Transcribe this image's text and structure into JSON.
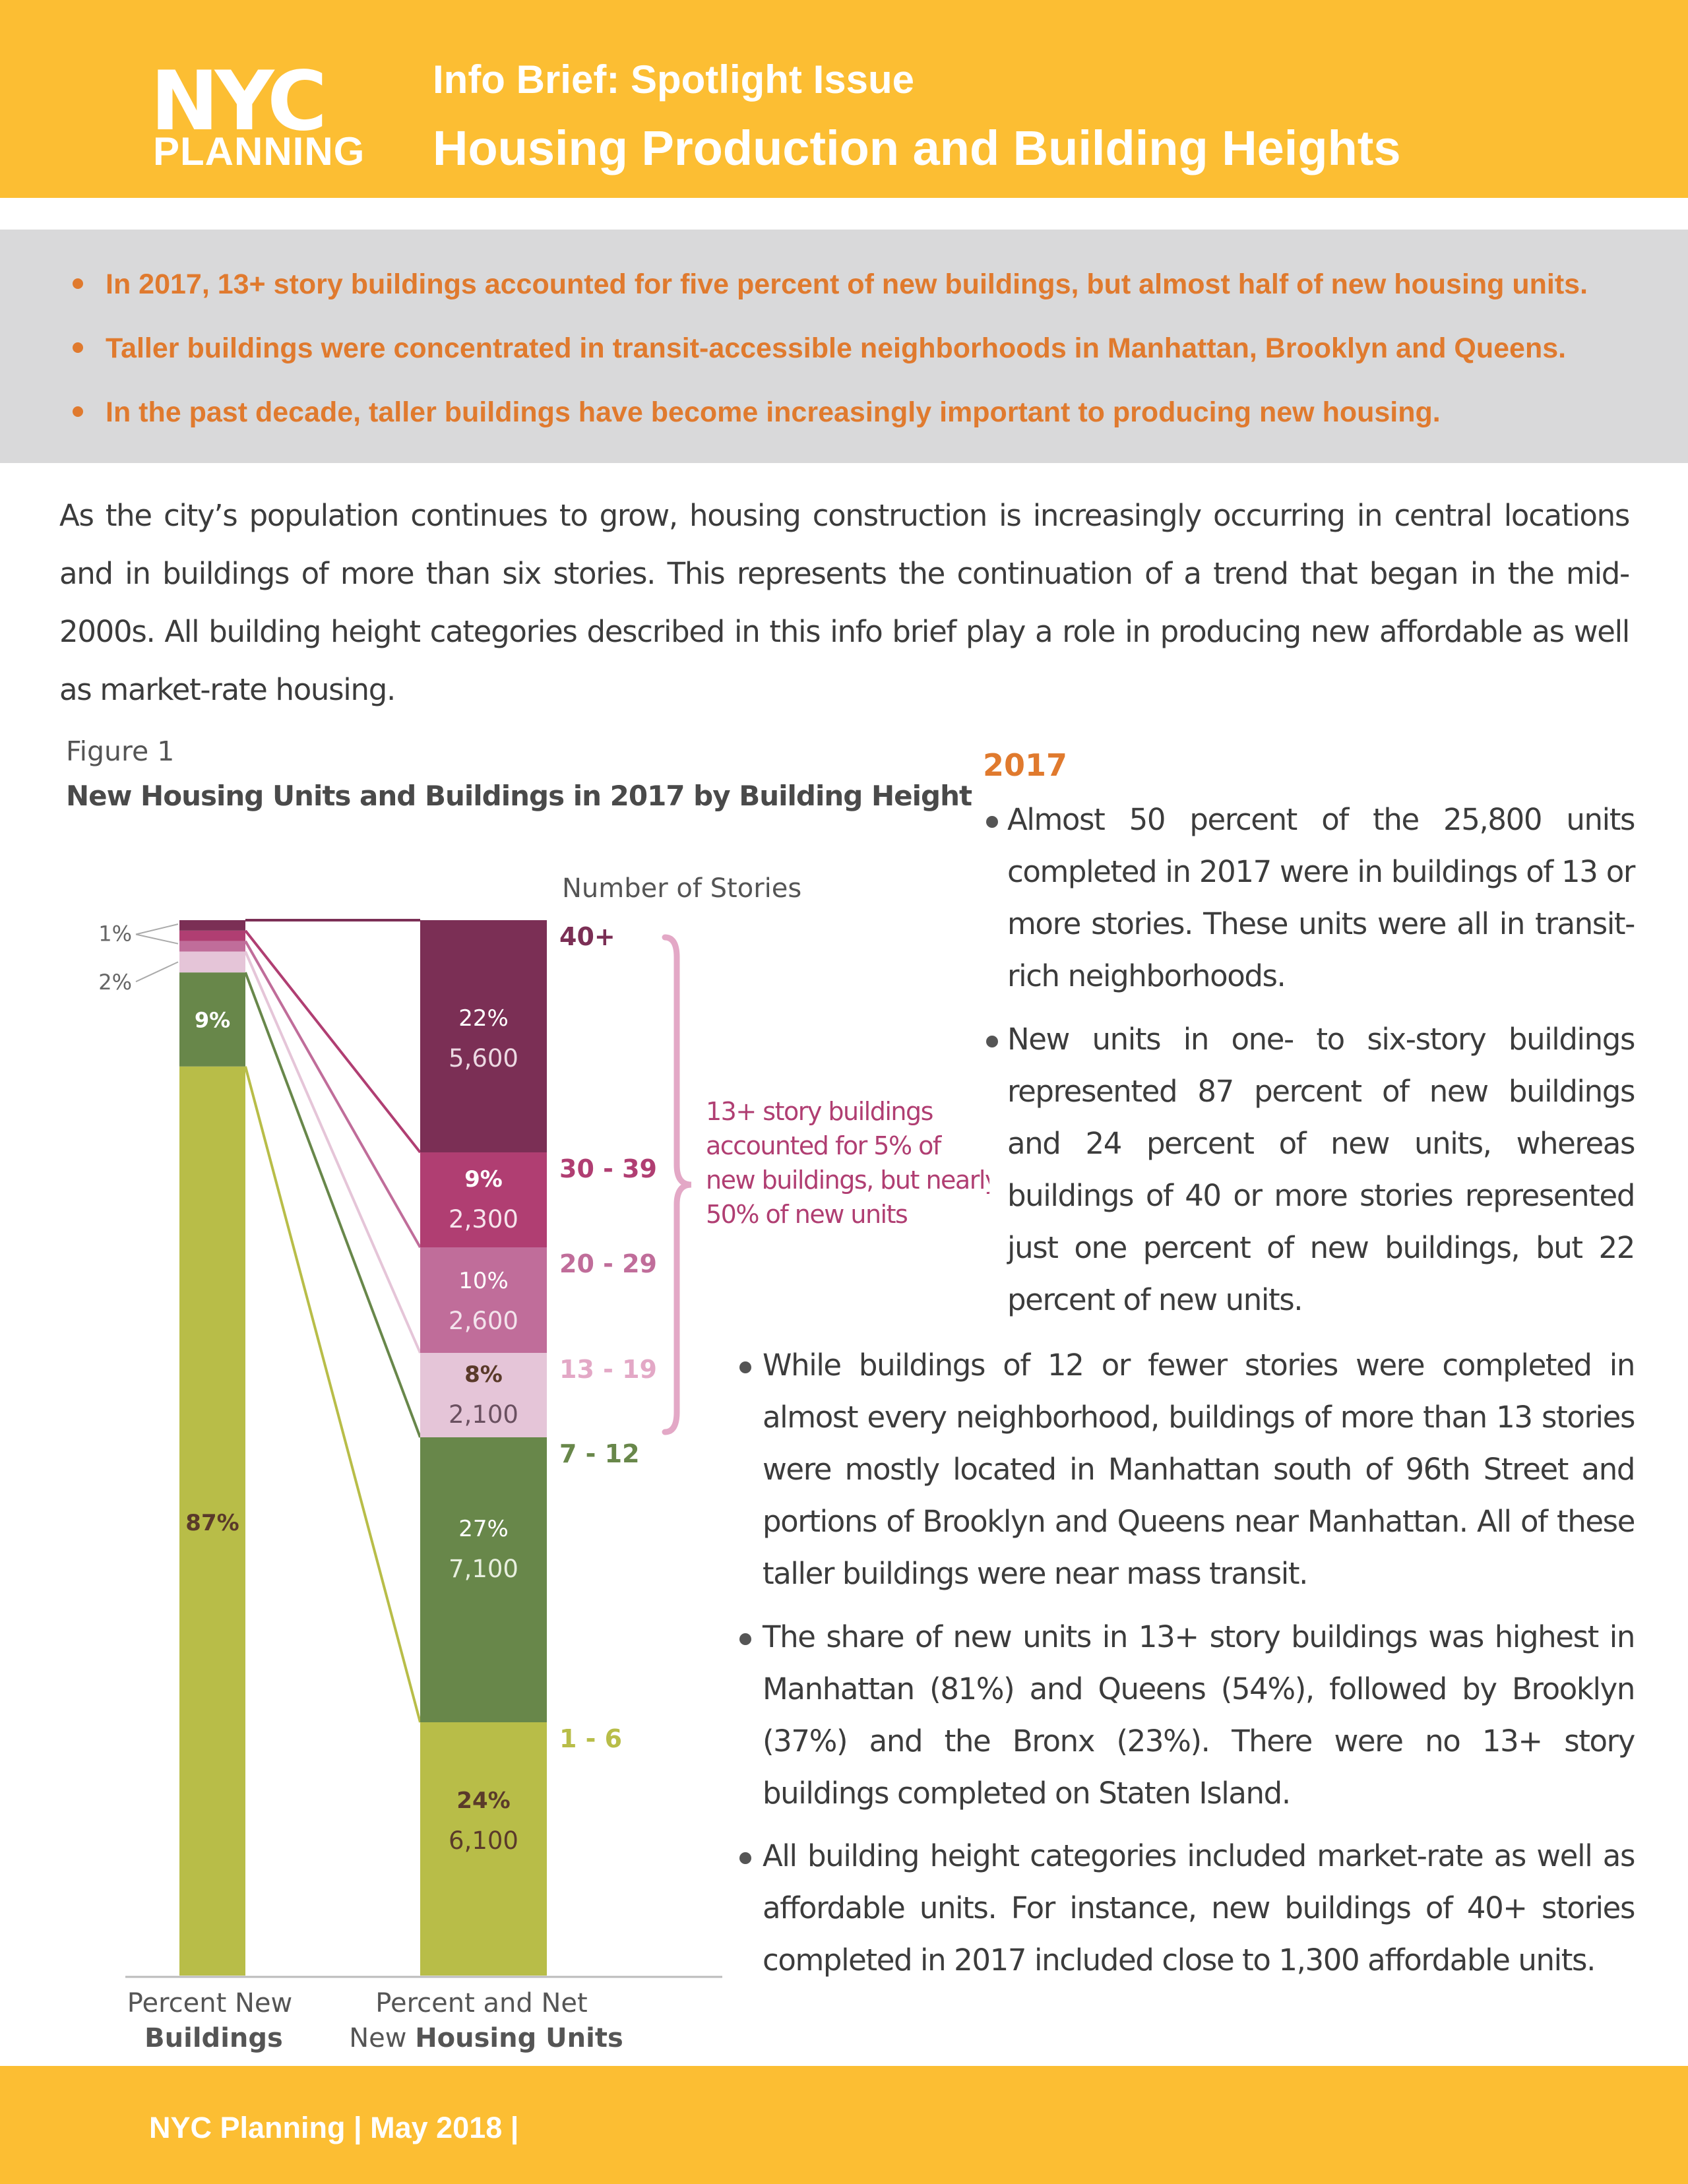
{
  "header": {
    "logo_top": "NYC",
    "logo_bottom": "PLANNING",
    "kicker": "Info Brief: Spotlight Issue",
    "title": "Housing Production and Building Heights"
  },
  "highlights": [
    "In 2017, 13+ story buildings accounted for five percent of new buildings, but almost half of new housing units.",
    "Taller buildings were concentrated in transit-accessible neighborhoods in Manhattan, Brooklyn and Queens.",
    "In the past decade, taller buildings have become increasingly important to producing new housing."
  ],
  "intro": "As the city’s population continues to grow, housing construction is increasingly occurring in central locations and in buildings of more than six stories. This represents the continuation of a trend that began in the mid-2000s. All building height categories described in this info brief play a role in producing new affordable as well as market-rate housing.",
  "figure": {
    "kicker": "Figure 1",
    "title": "New Housing Units and Buildings in 2017 by Building Height"
  },
  "chart_data": {
    "type": "bar",
    "title": "New Housing Units and Buildings in 2017 by Building Height",
    "legend_title": "Number of Stories",
    "categories": [
      "1 - 6",
      "7 - 12",
      "13 - 19",
      "20 - 29",
      "30 - 39",
      "40+"
    ],
    "colors": [
      "#b8bd48",
      "#68874a",
      "#e5c5d8",
      "#c06d9a",
      "#b03e72",
      "#7b2f55"
    ],
    "series": [
      {
        "name": "Percent New Buildings",
        "values": [
          87,
          9,
          2,
          1,
          1,
          1
        ],
        "labels": [
          "87%",
          "9%",
          "2%",
          "1%",
          "",
          ""
        ]
      },
      {
        "name": "Percent and Net New Housing Units",
        "values": [
          24,
          27,
          8,
          10,
          9,
          22
        ],
        "percent_labels": [
          "24%",
          "27%",
          "8%",
          "10%",
          "9%",
          "22%"
        ],
        "units": [
          "6,100",
          "7,100",
          "2,100",
          "2,600",
          "2,300",
          "5,600"
        ]
      }
    ],
    "xlabels": [
      {
        "line1": "Percent New",
        "line2": "Buildings"
      },
      {
        "line1": "Percent and Net",
        "line2_pre": "New ",
        "line2_bold": "Housing Units"
      }
    ],
    "annotation": [
      "13+ story buildings",
      "accounted for 5% of",
      "new buildings, but nearly",
      "50% of new units"
    ]
  },
  "right_column": {
    "heading": "2017",
    "bullets": [
      "Almost 50 percent of the 25,800 units completed in 2017 were in buildings of 13 or more stories. These units were all in transit-rich neighborhoods.",
      "New units in one- to six-story buildings represented 87 percent of new buildings and 24 percent of new units, whereas buildings of 40 or more stories represented just one percent of new buildings, but 22 percent of new units.",
      "While buildings of 12 or fewer stories were completed in almost every neighborhood, buildings of more than 13 stories were mostly located in Manhattan south of 96th Street and portions of Brooklyn and Queens near Manhattan. All of these taller buildings were near mass transit.",
      "The share of new units in 13+ story buildings was highest in Manhattan (81%) and Queens (54%), followed by Brooklyn (37%) and the Bronx (23%). There were no 13+ story buildings completed on Staten Island.",
      "All building height categories included market-rate as well as affordable units. For instance, new buildings of 40+ stories completed in 2017 included close to 1,300 affordable units."
    ]
  },
  "footer": {
    "text": "NYC Planning  |  May 2018  |"
  }
}
